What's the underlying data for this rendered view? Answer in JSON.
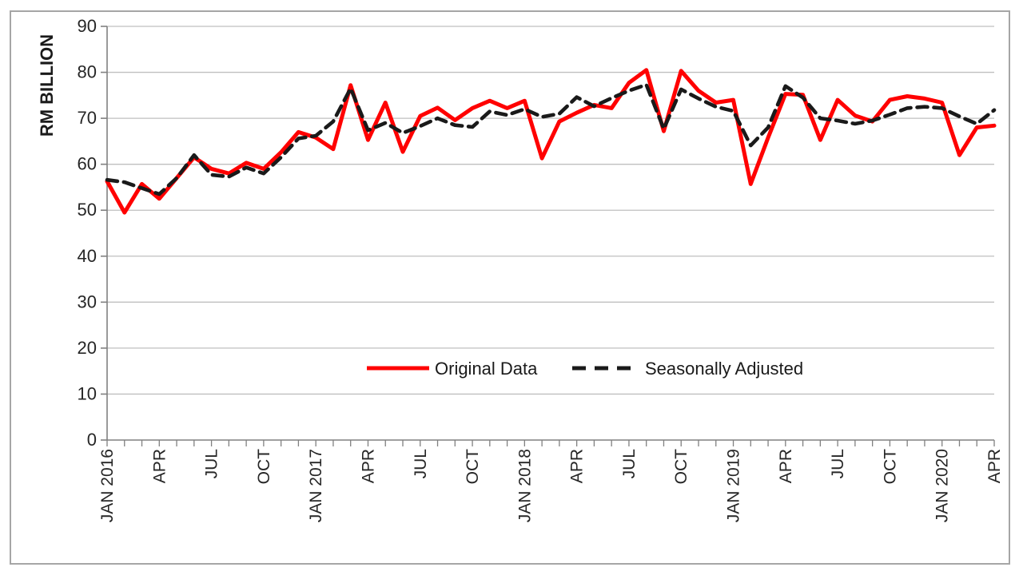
{
  "figure": {
    "border_color": "#A6A6A6",
    "background": "#FFFFFF"
  },
  "chart_data": {
    "type": "line",
    "title": "",
    "xlabel": "",
    "ylabel": "RM BILLION",
    "ylim": [
      0,
      90
    ],
    "ytick_step": 10,
    "y_tick_labels": [
      "0",
      "10",
      "20",
      "30",
      "40",
      "50",
      "60",
      "70",
      "80",
      "90"
    ],
    "grid": "horizontal",
    "n_points": 52,
    "x_start": "JAN 2016",
    "x_end": "APR 2020",
    "x_tick_labels": [
      {
        "i": 0,
        "label": "JAN 2016"
      },
      {
        "i": 3,
        "label": "APR"
      },
      {
        "i": 6,
        "label": "JUL"
      },
      {
        "i": 9,
        "label": "OCT"
      },
      {
        "i": 12,
        "label": "JAN 2017"
      },
      {
        "i": 15,
        "label": "APR"
      },
      {
        "i": 18,
        "label": "JUL"
      },
      {
        "i": 21,
        "label": "OCT"
      },
      {
        "i": 24,
        "label": "JAN 2018"
      },
      {
        "i": 27,
        "label": "APR"
      },
      {
        "i": 30,
        "label": "JUL"
      },
      {
        "i": 33,
        "label": "OCT"
      },
      {
        "i": 36,
        "label": "JAN 2019"
      },
      {
        "i": 39,
        "label": "APR"
      },
      {
        "i": 42,
        "label": "JUL"
      },
      {
        "i": 45,
        "label": "OCT"
      },
      {
        "i": 48,
        "label": "JAN 2020"
      },
      {
        "i": 51,
        "label": "APR"
      }
    ],
    "series": [
      {
        "name": "Original Data",
        "style": "solid",
        "color": "#FF0000",
        "values": [
          56.3,
          49.5,
          55.7,
          52.5,
          57.0,
          61.5,
          59.0,
          58.0,
          60.3,
          59.0,
          62.6,
          67.0,
          65.8,
          63.3,
          77.2,
          65.3,
          73.4,
          62.7,
          70.5,
          72.3,
          69.6,
          72.2,
          73.8,
          72.2,
          73.8,
          61.3,
          69.3,
          71.2,
          72.9,
          72.2,
          77.7,
          80.5,
          67.2,
          80.3,
          76.0,
          73.4,
          74.0,
          55.7,
          65.8,
          75.3,
          75.1,
          65.3,
          74.0,
          70.6,
          69.3,
          74.0,
          74.8,
          74.3,
          73.4,
          62.0,
          68.0,
          68.4
        ]
      },
      {
        "name": "Seasonally Adjusted",
        "style": "dashed",
        "color": "#1A1A1A",
        "values": [
          56.6,
          56.1,
          54.8,
          53.5,
          57.0,
          62.0,
          57.7,
          57.3,
          59.3,
          58.0,
          61.5,
          65.6,
          66.2,
          69.3,
          76.5,
          67.4,
          69.0,
          66.8,
          68.3,
          70.0,
          68.5,
          68.1,
          71.5,
          70.7,
          72.0,
          70.3,
          71.0,
          74.6,
          72.6,
          74.4,
          76.0,
          77.3,
          67.7,
          76.3,
          74.3,
          72.5,
          71.6,
          64.1,
          68.0,
          77.0,
          74.5,
          70.0,
          69.5,
          68.8,
          69.5,
          70.8,
          72.2,
          72.5,
          72.2,
          70.4,
          68.8,
          71.8
        ]
      }
    ],
    "legend_position": "inside-bottom-center",
    "colors": {
      "gridline": "#BFBFBF",
      "axis": "#808080",
      "tick_text": "#262626"
    }
  }
}
